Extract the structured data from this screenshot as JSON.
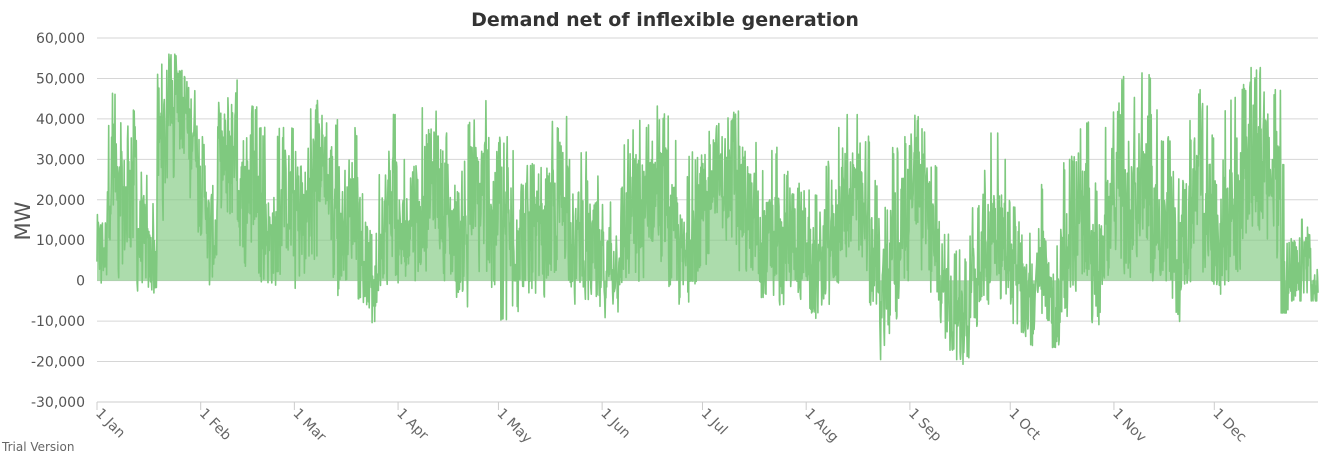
{
  "chart_data": {
    "type": "area",
    "title": "Demand net of inflexible generation",
    "xlabel": "",
    "ylabel": "MW",
    "ylim": [
      -30000,
      60000
    ],
    "y_ticks": [
      -30000,
      -20000,
      -10000,
      0,
      10000,
      20000,
      30000,
      40000,
      50000,
      60000
    ],
    "y_tick_labels": [
      "-30,000",
      "-20,000",
      "-10,000",
      "0",
      "10,000",
      "20,000",
      "30,000",
      "40,000",
      "50,000",
      "60,000"
    ],
    "x_tick_labels": [
      "1 Jan",
      "1 Feb",
      "1 Mar",
      "1 Apr",
      "1 May",
      "1 Jun",
      "1 Jul",
      "1 Aug",
      "1 Sep",
      "1 Oct",
      "1 Nov",
      "1 Dec"
    ],
    "x_tick_days": [
      0,
      31,
      59,
      90,
      120,
      151,
      181,
      212,
      243,
      273,
      304,
      334
    ],
    "grid": true,
    "legend": "none",
    "series": [
      {
        "color": "#7fc97f",
        "x_days": [
          0,
          3,
          6,
          9,
          12,
          15,
          18,
          21,
          24,
          27,
          30,
          33,
          36,
          39,
          42,
          45,
          48,
          51,
          54,
          57,
          60,
          63,
          66,
          69,
          72,
          75,
          78,
          81,
          84,
          87,
          90,
          93,
          96,
          99,
          102,
          105,
          108,
          111,
          114,
          117,
          120,
          123,
          126,
          129,
          132,
          135,
          138,
          141,
          144,
          147,
          150,
          153,
          156,
          159,
          162,
          165,
          168,
          171,
          174,
          177,
          180,
          183,
          186,
          189,
          192,
          195,
          198,
          201,
          204,
          207,
          210,
          213,
          216,
          219,
          222,
          225,
          228,
          231,
          234,
          237,
          240,
          243,
          246,
          249,
          252,
          255,
          258,
          261,
          264,
          267,
          270,
          273,
          276,
          279,
          282,
          285,
          288,
          291,
          294,
          297,
          300,
          303,
          306,
          309,
          312,
          315,
          318,
          321,
          324,
          327,
          330,
          333,
          336,
          339,
          342,
          345,
          348,
          351,
          354,
          357,
          360,
          363
        ],
        "values": [
          8000,
          25000,
          18000,
          30000,
          10000,
          5000,
          35000,
          48000,
          42000,
          38000,
          22000,
          12000,
          30000,
          35000,
          20000,
          25000,
          15000,
          10000,
          20000,
          18000,
          14000,
          25000,
          30000,
          22000,
          12000,
          18000,
          5000,
          2000,
          15000,
          20000,
          10000,
          18000,
          22000,
          25000,
          20000,
          12000,
          10000,
          20000,
          22000,
          18000,
          15000,
          12000,
          14000,
          10000,
          8000,
          15000,
          20000,
          10000,
          12000,
          8000,
          2000,
          5000,
          12000,
          18000,
          15000,
          22000,
          20000,
          10000,
          5000,
          12000,
          18000,
          28000,
          25000,
          24000,
          20000,
          15000,
          8000,
          10000,
          5000,
          12000,
          10000,
          2000,
          5000,
          12000,
          20000,
          22000,
          15000,
          5000,
          -2000,
          8000,
          15000,
          25000,
          20000,
          8000,
          -5000,
          -8000,
          -12000,
          0,
          8000,
          15000,
          10000,
          5000,
          -5000,
          -3000,
          2000,
          -8000,
          5000,
          10000,
          15000,
          2000,
          12000,
          20000,
          18000,
          22000,
          25000,
          15000,
          10000,
          5000,
          12000,
          22000,
          18000,
          10000,
          15000,
          20000,
          25000,
          30000,
          28000,
          22000,
          -2000,
          0,
          5000,
          -3000
        ],
        "spikes_max": [
          22000,
          48000,
          40000,
          44000,
          28000,
          20000,
          54000,
          56000,
          52000,
          48000,
          36000,
          30000,
          45000,
          50000,
          36000,
          44000,
          38000,
          28000,
          38000,
          40000,
          30000,
          45000,
          45000,
          40000,
          30000,
          38000,
          22000,
          18000,
          38000,
          42000,
          30000,
          40000,
          45000,
          44000,
          38000,
          32000,
          30000,
          40000,
          46000,
          38000,
          36000,
          34000,
          38000,
          30000,
          28000,
          40000,
          42000,
          30000,
          34000,
          28000,
          20000,
          22000,
          36000,
          40000,
          40000,
          44000,
          42000,
          36000,
          26000,
          32000,
          40000,
          43000,
          43000,
          42000,
          40000,
          36000,
          30000,
          34000,
          28000,
          34000,
          32000,
          22000,
          30000,
          38000,
          42000,
          42000,
          36000,
          26000,
          20000,
          34000,
          36000,
          41000,
          38000,
          30000,
          12000,
          8000,
          6000,
          20000,
          30000,
          38000,
          30000,
          20000,
          12000,
          14000,
          24000,
          10000,
          30000,
          32000,
          40000,
          25000,
          38000,
          44000,
          52000,
          46000,
          53000,
          44000,
          36000,
          28000,
          40000,
          48000,
          44000,
          36000,
          42000,
          46000,
          50000,
          53000,
          49000,
          48000,
          30000,
          26000,
          28000,
          12000
        ],
        "spikes_min": [
          -2000,
          5000,
          0,
          8000,
          -4000,
          -5000,
          12000,
          25000,
          20000,
          18000,
          5000,
          -3000,
          10000,
          15000,
          2000,
          8000,
          -2000,
          -5000,
          0,
          -2000,
          -11000,
          5000,
          10000,
          0,
          -4000,
          0,
          -6000,
          -12000,
          -3000,
          0,
          -5000,
          0,
          2000,
          8000,
          0,
          -5000,
          -8000,
          -2000,
          0,
          -2000,
          -12000,
          -8000,
          -4000,
          -5000,
          -5000,
          0,
          -2000,
          -6000,
          -5000,
          -5000,
          -12000,
          -8000,
          -3000,
          0,
          -2000,
          5000,
          2000,
          -4000,
          -8000,
          -3000,
          2000,
          10000,
          8000,
          8000,
          2000,
          0,
          -5000,
          -4000,
          -6000,
          -3000,
          -5000,
          -10000,
          -6000,
          -2000,
          5000,
          5000,
          0,
          -8000,
          -20000,
          -10000,
          0,
          8000,
          2000,
          -5000,
          -15000,
          -20000,
          -21000,
          -16000,
          -10000,
          -2000,
          -6000,
          -12000,
          -15000,
          -17000,
          -10000,
          -18000,
          -10000,
          -5000,
          0,
          -12000,
          -2000,
          5000,
          0,
          5000,
          8000,
          0,
          -5000,
          -12000,
          -3000,
          5000,
          0,
          -6000,
          -2000,
          0,
          8000,
          12000,
          10000,
          5000,
          -8000,
          -5000,
          -3000,
          -5000
        ]
      }
    ]
  },
  "watermark": "Trial Version"
}
